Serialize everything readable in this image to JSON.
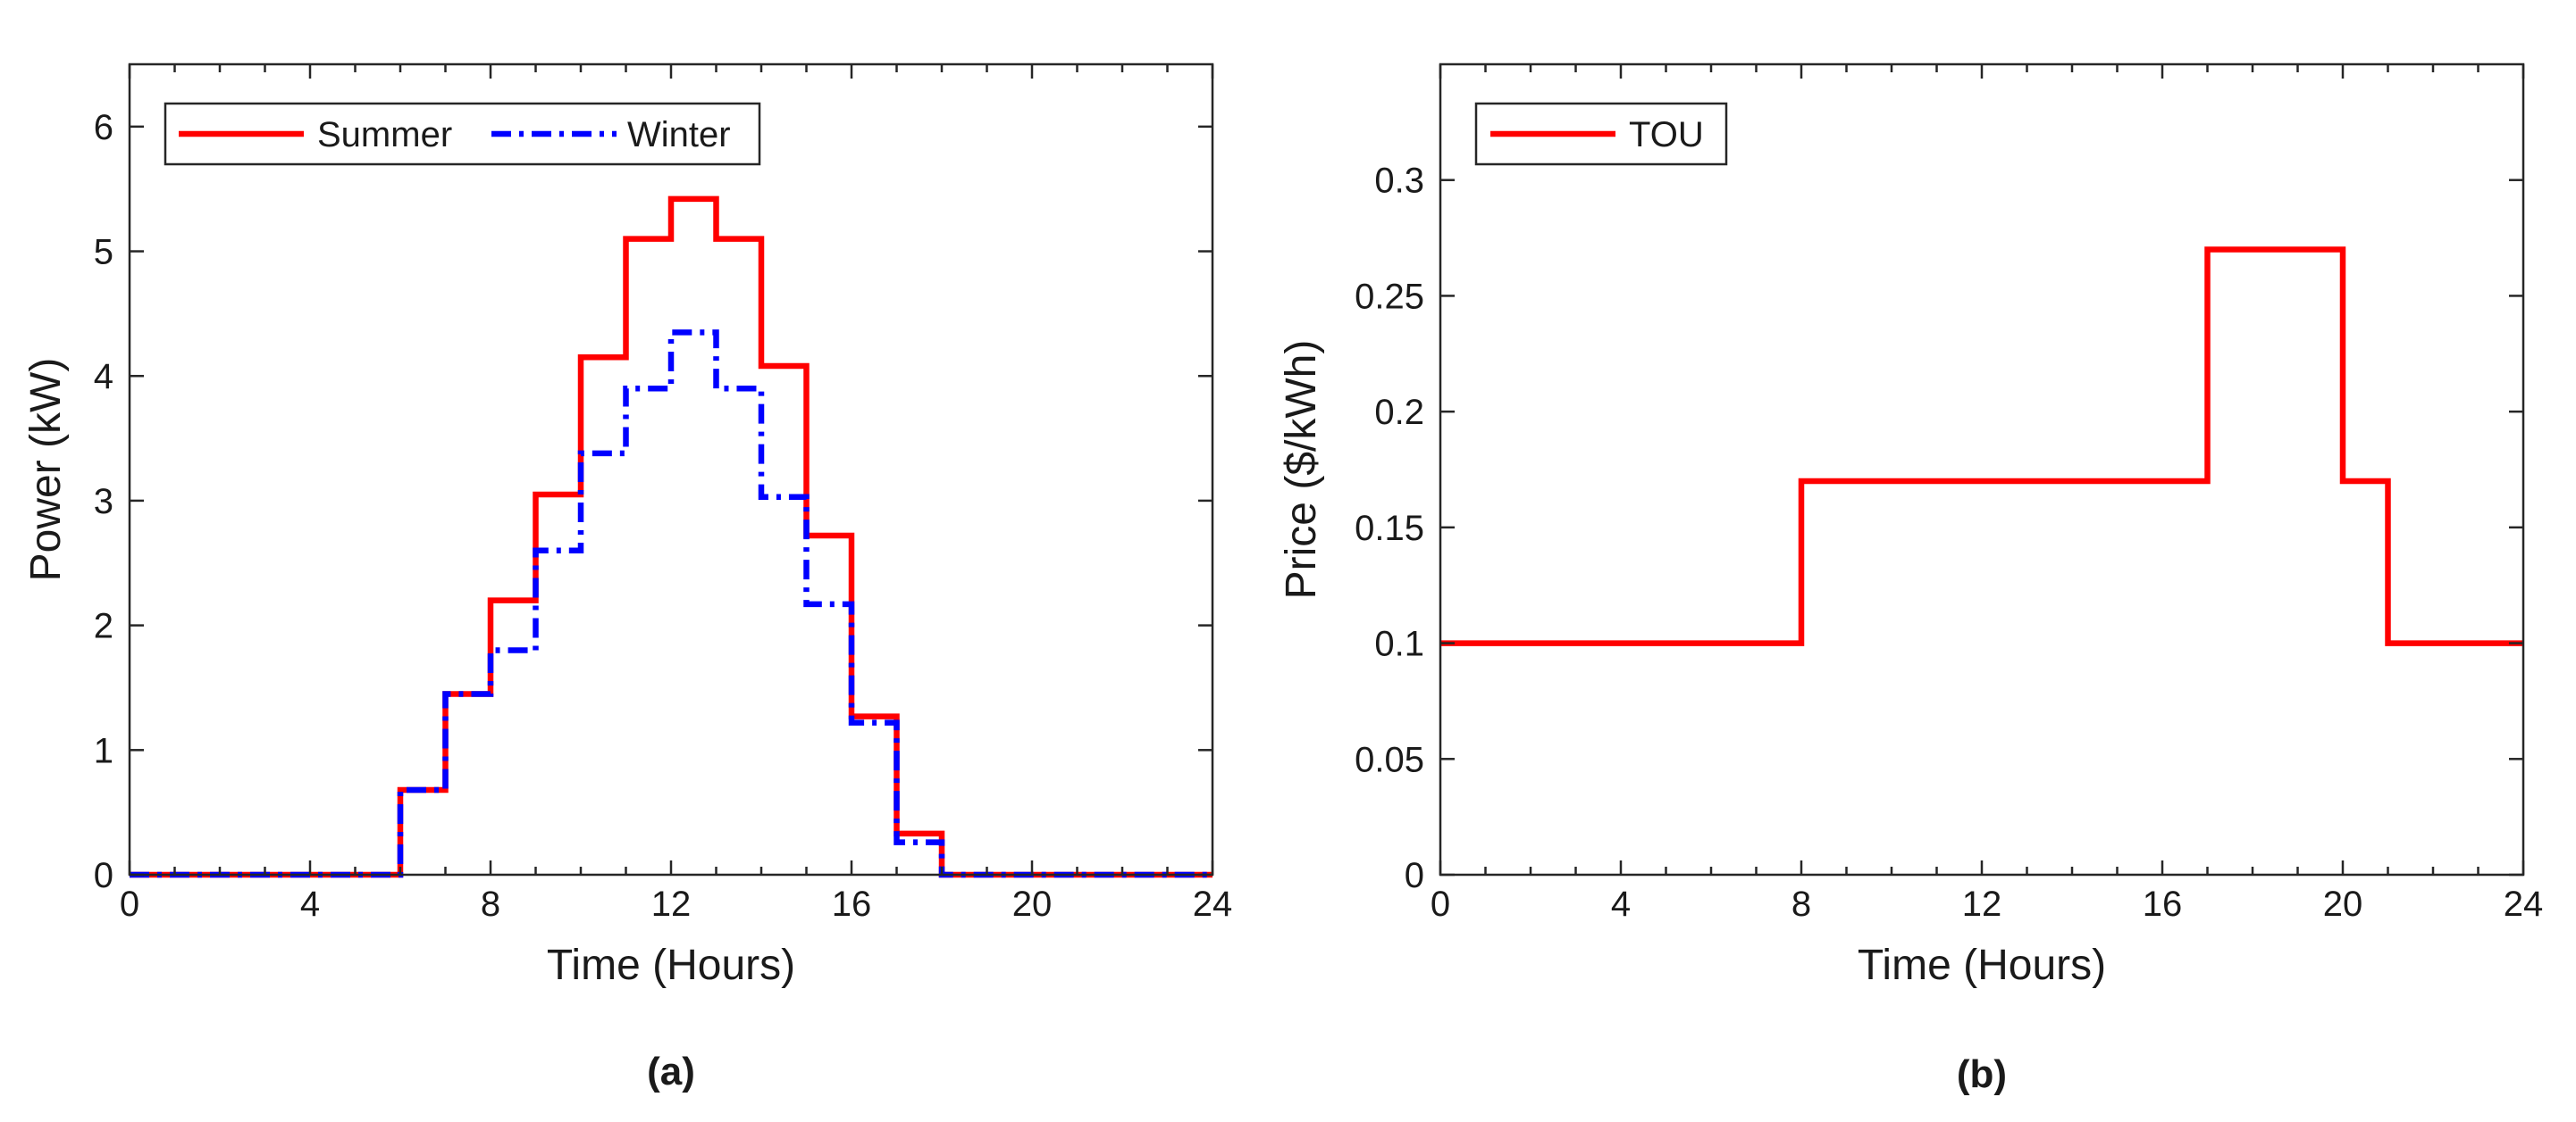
{
  "chart_data": [
    {
      "type": "line",
      "step": "post",
      "caption": "(a)",
      "xlabel": "Time (Hours)",
      "ylabel": "Power (kW)",
      "xlim": [
        0,
        24
      ],
      "ylim": [
        0,
        6.5
      ],
      "xticks": [
        0,
        4,
        8,
        12,
        16,
        20,
        24
      ],
      "xtick_labels": [
        "0",
        "4",
        "8",
        "12",
        "16",
        "20",
        "24"
      ],
      "yticks": [
        0,
        1,
        2,
        3,
        4,
        5,
        6
      ],
      "ytick_labels": [
        "0",
        "1",
        "2",
        "3",
        "4",
        "5",
        "6"
      ],
      "grid": false,
      "legend_position": "top-left",
      "x": [
        0,
        1,
        2,
        3,
        4,
        5,
        6,
        7,
        8,
        9,
        10,
        11,
        12,
        13,
        14,
        15,
        16,
        17,
        18,
        19,
        20,
        21,
        22,
        23,
        24
      ],
      "series": [
        {
          "name": "Summer",
          "color": "#ff0000",
          "style": "solid",
          "values": [
            0,
            0,
            0,
            0,
            0,
            0,
            0.68,
            1.45,
            2.2,
            3.05,
            4.15,
            5.1,
            5.42,
            5.1,
            4.08,
            2.72,
            1.27,
            0.33,
            0,
            0,
            0,
            0,
            0,
            0,
            0
          ]
        },
        {
          "name": "Winter",
          "color": "#0000ff",
          "style": "dashdot",
          "values": [
            0,
            0,
            0,
            0,
            0,
            0,
            0.68,
            1.45,
            1.8,
            2.6,
            3.38,
            3.9,
            4.35,
            3.9,
            3.03,
            2.17,
            1.22,
            0.26,
            0,
            0,
            0,
            0,
            0,
            0,
            0
          ]
        }
      ]
    },
    {
      "type": "line",
      "step": "post",
      "caption": "(b)",
      "xlabel": "Time (Hours)",
      "ylabel": "Price ($/kWh)",
      "xlim": [
        0,
        24
      ],
      "ylim": [
        0,
        0.35
      ],
      "xticks": [
        0,
        4,
        8,
        12,
        16,
        20,
        24
      ],
      "xtick_labels": [
        "0",
        "4",
        "8",
        "12",
        "16",
        "20",
        "24"
      ],
      "yticks": [
        0,
        0.05,
        0.1,
        0.15,
        0.2,
        0.25,
        0.3
      ],
      "ytick_labels": [
        "0",
        "0.05",
        "0.1",
        "0.15",
        "0.2",
        "0.25",
        "0.3"
      ],
      "grid": false,
      "legend_position": "top-left",
      "x": [
        0,
        8,
        17,
        20,
        21,
        24
      ],
      "series": [
        {
          "name": "TOU",
          "color": "#ff0000",
          "style": "solid",
          "values": [
            0.1,
            0.17,
            0.27,
            0.17,
            0.1,
            0.1
          ]
        }
      ]
    }
  ]
}
